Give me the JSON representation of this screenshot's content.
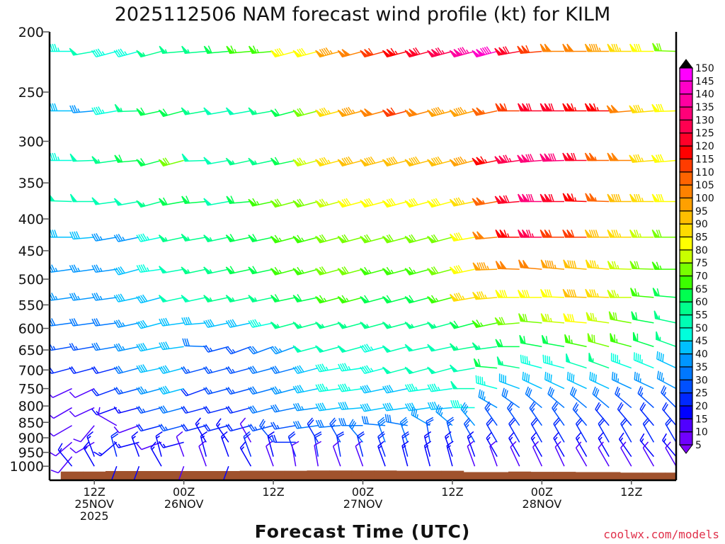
{
  "chart_data": {
    "type": "wind-barb time-height profile",
    "title": "2025112506 NAM forecast wind profile (kt) for KILM",
    "xlabel": "Forecast Time (UTC)",
    "ylabel": "",
    "credit": "coolwx.com/models",
    "y_axis": {
      "scale": "log",
      "range_hpa": [
        200,
        1052
      ],
      "inverted": true,
      "ticks": [
        200,
        250,
        300,
        350,
        400,
        450,
        500,
        550,
        600,
        650,
        700,
        750,
        800,
        850,
        900,
        950,
        1000
      ]
    },
    "x_axis": {
      "unit": "hours since 06Z 25NOV2025",
      "range": [
        0,
        84
      ],
      "ticks": [
        {
          "hour": 6,
          "lines": [
            "12Z",
            "25NOV",
            "2025"
          ]
        },
        {
          "hour": 18,
          "lines": [
            "00Z",
            "26NOV"
          ]
        },
        {
          "hour": 30,
          "lines": [
            "12Z"
          ]
        },
        {
          "hour": 42,
          "lines": [
            "00Z",
            "27NOV"
          ]
        },
        {
          "hour": 54,
          "lines": [
            "12Z"
          ]
        },
        {
          "hour": 66,
          "lines": [
            "00Z",
            "28NOV"
          ]
        },
        {
          "hour": 78,
          "lines": [
            "12Z"
          ]
        }
      ]
    },
    "colorbar": {
      "labels": [
        5,
        10,
        15,
        20,
        25,
        30,
        35,
        40,
        45,
        50,
        55,
        60,
        65,
        70,
        75,
        80,
        85,
        90,
        95,
        100,
        105,
        110,
        115,
        120,
        125,
        130,
        135,
        140,
        145,
        150
      ],
      "colors": [
        "#7000ff",
        "#5000ff",
        "#0000ff",
        "#0028ff",
        "#0050ff",
        "#0078ff",
        "#0096ff",
        "#00c0ff",
        "#00ffdc",
        "#00ffb4",
        "#00ff8c",
        "#00ff50",
        "#3cff00",
        "#78ff00",
        "#c8ff00",
        "#ffff00",
        "#ffdc00",
        "#ffbe00",
        "#ffa000",
        "#ff8200",
        "#ff6400",
        "#ff3c00",
        "#ff0000",
        "#ff0028",
        "#ff0050",
        "#ff0078",
        "#ff00a0",
        "#ff00c8",
        "#ff00ff"
      ],
      "under_color": "#8000ff",
      "over_color": "#000000"
    },
    "ground_color": "#a0522d",
    "hours": [
      3,
      6,
      9,
      12,
      15,
      18,
      21,
      24,
      27,
      30,
      33,
      36,
      39,
      42,
      45,
      48,
      51,
      54,
      57,
      60,
      63,
      66,
      69,
      72,
      75,
      78,
      81,
      84
    ],
    "surface_pressure_hpa": [
      1020,
      1020,
      1018,
      1018,
      1018,
      1018,
      1018,
      1018,
      1017,
      1017,
      1017,
      1016,
      1016,
      1016,
      1016,
      1017,
      1017,
      1017,
      1022,
      1022,
      1020,
      1021,
      1021,
      1022,
      1022,
      1024,
      1024,
      1024
    ],
    "levels": [
      {
        "p": 215,
        "speed": [
          45,
          50,
          45,
          45,
          55,
          55,
          55,
          60,
          65,
          65,
          80,
          80,
          95,
          100,
          110,
          115,
          120,
          125,
          135,
          140,
          120,
          110,
          100,
          100,
          95,
          85,
          80,
          70
        ],
        "dir": [
          270,
          260,
          255,
          255,
          255,
          265,
          265,
          265,
          265,
          265,
          255,
          255,
          255,
          255,
          255,
          255,
          255,
          255,
          255,
          255,
          260,
          265,
          270,
          270,
          270,
          270,
          270,
          272
        ]
      },
      {
        "p": 268,
        "speed": [
          40,
          35,
          45,
          55,
          60,
          60,
          55,
          50,
          50,
          55,
          60,
          70,
          85,
          95,
          100,
          110,
          100,
          95,
          95,
          105,
          110,
          120,
          120,
          115,
          115,
          100,
          85,
          80
        ],
        "dir": [
          270,
          265,
          260,
          268,
          258,
          255,
          260,
          260,
          260,
          260,
          255,
          255,
          255,
          255,
          255,
          255,
          255,
          255,
          255,
          258,
          270,
          270,
          270,
          270,
          270,
          265,
          265,
          268
        ]
      },
      {
        "p": 322,
        "speed": [
          45,
          50,
          55,
          60,
          60,
          70,
          50,
          50,
          55,
          55,
          60,
          75,
          85,
          90,
          90,
          90,
          90,
          90,
          95,
          115,
          125,
          130,
          130,
          120,
          105,
          100,
          85,
          80
        ],
        "dir": [
          270,
          268,
          262,
          265,
          255,
          255,
          268,
          260,
          258,
          258,
          258,
          255,
          255,
          255,
          255,
          255,
          255,
          255,
          255,
          258,
          262,
          265,
          268,
          270,
          270,
          270,
          265,
          265
        ]
      },
      {
        "p": 375,
        "speed": [
          50,
          50,
          50,
          50,
          55,
          60,
          60,
          50,
          60,
          65,
          70,
          70,
          75,
          80,
          80,
          80,
          80,
          80,
          85,
          105,
          120,
          130,
          120,
          115,
          105,
          90,
          85,
          80
        ],
        "dir": [
          272,
          270,
          262,
          260,
          255,
          260,
          265,
          260,
          265,
          258,
          255,
          255,
          255,
          255,
          255,
          255,
          255,
          255,
          258,
          260,
          265,
          270,
          270,
          272,
          272,
          270,
          270,
          270
        ]
      },
      {
        "p": 428,
        "speed": [
          40,
          40,
          35,
          35,
          45,
          55,
          55,
          55,
          60,
          60,
          65,
          65,
          70,
          70,
          70,
          70,
          70,
          70,
          80,
          100,
          115,
          125,
          110,
          110,
          90,
          85,
          75,
          70
        ],
        "dir": [
          270,
          265,
          260,
          258,
          258,
          258,
          260,
          258,
          258,
          258,
          255,
          255,
          255,
          255,
          255,
          255,
          255,
          255,
          260,
          265,
          270,
          270,
          270,
          270,
          270,
          270,
          270,
          270
        ]
      },
      {
        "p": 482,
        "speed": [
          35,
          35,
          35,
          40,
          45,
          50,
          55,
          55,
          60,
          60,
          65,
          65,
          70,
          70,
          65,
          65,
          65,
          70,
          80,
          95,
          100,
          100,
          95,
          90,
          85,
          75,
          70,
          65
        ],
        "dir": [
          262,
          262,
          262,
          255,
          262,
          260,
          258,
          258,
          258,
          258,
          255,
          255,
          255,
          255,
          255,
          255,
          255,
          255,
          258,
          268,
          272,
          275,
          275,
          275,
          275,
          272,
          272,
          270
        ]
      },
      {
        "p": 535,
        "speed": [
          35,
          35,
          35,
          40,
          40,
          50,
          50,
          55,
          55,
          55,
          60,
          60,
          65,
          65,
          60,
          60,
          60,
          65,
          85,
          85,
          80,
          80,
          80,
          90,
          85,
          75,
          65,
          60
        ],
        "dir": [
          262,
          262,
          262,
          258,
          255,
          258,
          258,
          258,
          258,
          258,
          258,
          258,
          255,
          255,
          255,
          255,
          255,
          255,
          260,
          265,
          270,
          270,
          272,
          272,
          272,
          270,
          275,
          275
        ]
      },
      {
        "p": 588,
        "speed": [
          30,
          30,
          30,
          35,
          40,
          40,
          40,
          40,
          40,
          45,
          55,
          55,
          55,
          55,
          55,
          55,
          55,
          55,
          60,
          65,
          70,
          70,
          75,
          80,
          75,
          70,
          60,
          55
        ],
        "dir": [
          262,
          262,
          262,
          258,
          255,
          262,
          265,
          258,
          258,
          258,
          255,
          255,
          255,
          255,
          255,
          255,
          255,
          255,
          255,
          258,
          265,
          275,
          275,
          275,
          278,
          280,
          280,
          282
        ]
      },
      {
        "p": 642,
        "speed": [
          25,
          25,
          30,
          35,
          40,
          40,
          30,
          25,
          25,
          30,
          35,
          50,
          50,
          50,
          45,
          50,
          50,
          50,
          55,
          55,
          60,
          60,
          60,
          65,
          70,
          65,
          60,
          55
        ],
        "dir": [
          260,
          260,
          260,
          258,
          258,
          262,
          272,
          255,
          250,
          250,
          250,
          255,
          255,
          255,
          255,
          255,
          258,
          258,
          260,
          262,
          270,
          280,
          280,
          282,
          285,
          285,
          288,
          290
        ]
      },
      {
        "p": 695,
        "speed": [
          20,
          20,
          20,
          30,
          40,
          40,
          25,
          25,
          25,
          30,
          30,
          40,
          45,
          45,
          45,
          50,
          50,
          50,
          50,
          60,
          55,
          45,
          45,
          50,
          55,
          45,
          45,
          40
        ],
        "dir": [
          255,
          255,
          255,
          255,
          258,
          255,
          255,
          255,
          255,
          255,
          255,
          255,
          260,
          262,
          255,
          255,
          255,
          255,
          260,
          275,
          280,
          285,
          285,
          288,
          290,
          290,
          292,
          295
        ]
      },
      {
        "p": 750,
        "speed": [
          10,
          10,
          20,
          25,
          35,
          40,
          20,
          25,
          25,
          30,
          35,
          40,
          45,
          45,
          40,
          40,
          45,
          45,
          50,
          45,
          40,
          40,
          40,
          40,
          40,
          35,
          35,
          35
        ],
        "dir": [
          245,
          245,
          250,
          255,
          255,
          255,
          250,
          255,
          255,
          255,
          255,
          258,
          262,
          262,
          258,
          258,
          262,
          262,
          270,
          285,
          290,
          295,
          295,
          295,
          295,
          295,
          295,
          298
        ]
      },
      {
        "p": 805,
        "speed": [
          10,
          10,
          15,
          15,
          25,
          30,
          20,
          20,
          20,
          30,
          30,
          35,
          40,
          40,
          40,
          40,
          40,
          40,
          45,
          35,
          30,
          30,
          30,
          30,
          30,
          25,
          25,
          25
        ],
        "dir": [
          240,
          245,
          250,
          255,
          255,
          255,
          255,
          255,
          255,
          255,
          258,
          262,
          262,
          265,
          260,
          262,
          262,
          265,
          270,
          300,
          305,
          310,
          310,
          310,
          310,
          310,
          312,
          315
        ]
      },
      {
        "p": 860,
        "speed": [
          10,
          10,
          10,
          10,
          20,
          25,
          20,
          20,
          20,
          25,
          25,
          30,
          30,
          30,
          30,
          30,
          35,
          35,
          35,
          25,
          25,
          25,
          25,
          25,
          20,
          20,
          20,
          20
        ],
        "dir": [
          240,
          220,
          300,
          250,
          255,
          255,
          255,
          255,
          255,
          255,
          260,
          262,
          265,
          270,
          275,
          280,
          300,
          310,
          320,
          325,
          325,
          325,
          325,
          320,
          320,
          320,
          320,
          320
        ]
      },
      {
        "p": 915,
        "speed": [
          10,
          10,
          15,
          15,
          10,
          15,
          15,
          15,
          10,
          25,
          20,
          20,
          25,
          30,
          30,
          30,
          25,
          25,
          25,
          20,
          20,
          20,
          20,
          20,
          20,
          20,
          20,
          20
        ],
        "dir": [
          230,
          240,
          230,
          255,
          250,
          255,
          330,
          325,
          330,
          320,
          270,
          330,
          330,
          320,
          340,
          340,
          350,
          345,
          330,
          330,
          330,
          330,
          330,
          330,
          330,
          330,
          330,
          330
        ]
      },
      {
        "p": 965,
        "speed": [
          10,
          15,
          20,
          15,
          15,
          10,
          15,
          15,
          20,
          15,
          20,
          20,
          20,
          20,
          20,
          20,
          15,
          15,
          15,
          15,
          15,
          15,
          15,
          15,
          15,
          15,
          15,
          15
        ],
        "dir": [
          220,
          340,
          345,
          340,
          345,
          340,
          345,
          340,
          340,
          345,
          340,
          350,
          350,
          345,
          340,
          345,
          345,
          340,
          340,
          330,
          330,
          330,
          330,
          330,
          330,
          325,
          320,
          320
        ]
      },
      {
        "p": 1000,
        "speed": [
          15,
          15,
          15,
          15,
          15,
          10,
          10,
          15,
          15,
          10,
          10,
          10,
          10,
          10,
          15,
          15,
          15,
          15,
          10,
          10,
          10,
          10,
          10,
          10,
          10,
          10,
          10,
          10
        ],
        "dir": [
          320,
          330,
          200,
          200,
          330,
          200,
          340,
          200,
          330,
          340,
          350,
          350,
          340,
          340,
          340,
          345,
          345,
          345,
          340,
          340,
          335,
          335,
          335,
          330,
          330,
          330,
          330,
          330
        ]
      }
    ]
  }
}
